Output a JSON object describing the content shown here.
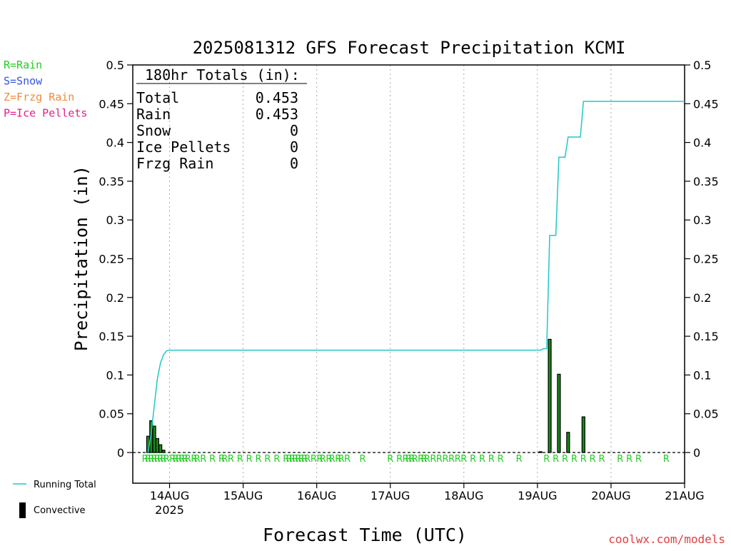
{
  "chart_data": {
    "type": "line",
    "title": "2025081312 GFS Forecast Precipitation KCMI",
    "xlabel": "Forecast Time (UTC)",
    "ylabel": "Precipitation (in)",
    "ylim": [
      0,
      0.5
    ],
    "y_ticks": [
      "0",
      "0.05",
      "0.1",
      "0.15",
      "0.2",
      "0.25",
      "0.3",
      "0.35",
      "0.4",
      "0.45",
      "0.5"
    ],
    "y_tick_values": [
      0,
      0.05,
      0.1,
      0.15,
      0.2,
      0.25,
      0.3,
      0.35,
      0.4,
      0.45,
      0.5
    ],
    "xlim_hours": [
      -12,
      168
    ],
    "x_ticks": [
      {
        "label": "14AUG",
        "hour": 0,
        "sub": "2025"
      },
      {
        "label": "15AUG",
        "hour": 24,
        "sub": ""
      },
      {
        "label": "16AUG",
        "hour": 48,
        "sub": ""
      },
      {
        "label": "17AUG",
        "hour": 72,
        "sub": ""
      },
      {
        "label": "18AUG",
        "hour": 96,
        "sub": ""
      },
      {
        "label": "19AUG",
        "hour": 120,
        "sub": ""
      },
      {
        "label": "20AUG",
        "hour": 144,
        "sub": ""
      },
      {
        "label": "21AUG",
        "hour": 168,
        "sub": ""
      }
    ],
    "type_legend": [
      {
        "text": "R=Rain",
        "color": "#22cc22"
      },
      {
        "text": "S=Snow",
        "color": "#3355dd"
      },
      {
        "text": "Z=Frzg Rain",
        "color": "#f08a3c"
      },
      {
        "text": "P=Ice Pellets",
        "color": "#e0208a"
      }
    ],
    "totals_box": {
      "heading": "180hr Totals (in):",
      "rows": [
        {
          "label": "Total",
          "value": "0.453"
        },
        {
          "label": "Rain",
          "value": "0.453"
        },
        {
          "label": "Snow",
          "value": "0"
        },
        {
          "label": "Ice Pellets",
          "value": "0"
        },
        {
          "label": "Frzg Rain",
          "value": "0"
        }
      ]
    },
    "series": [
      {
        "name": "Running Total",
        "color": "#22c7c7",
        "points": [
          [
            -7,
            0
          ],
          [
            -6,
            0.025
          ],
          [
            -5,
            0.06
          ],
          [
            -4,
            0.095
          ],
          [
            -3,
            0.115
          ],
          [
            -2,
            0.126
          ],
          [
            -1,
            0.131
          ],
          [
            0,
            0.132
          ],
          [
            48,
            0.132
          ],
          [
            120,
            0.132
          ],
          [
            121,
            0.132
          ],
          [
            122,
            0.134
          ],
          [
            123,
            0.134
          ],
          [
            124,
            0.28
          ],
          [
            126,
            0.28
          ],
          [
            127,
            0.381
          ],
          [
            129,
            0.381
          ],
          [
            130,
            0.407
          ],
          [
            134,
            0.407
          ],
          [
            135,
            0.453
          ],
          [
            168,
            0.453
          ]
        ]
      },
      {
        "name": "Convective",
        "color": "#000000",
        "bar_color": "#1a8a1a",
        "bars": [
          [
            -7,
            0.021
          ],
          [
            -6,
            0.041
          ],
          [
            -5,
            0.034
          ],
          [
            -4,
            0.018
          ],
          [
            -3,
            0.01
          ],
          [
            -2,
            0.003
          ],
          [
            121,
            0.001
          ],
          [
            124,
            0.146
          ],
          [
            127,
            0.101
          ],
          [
            130,
            0.026
          ],
          [
            135,
            0.046
          ]
        ]
      }
    ],
    "precip_type_marks": {
      "letter": "R",
      "color": "#22cc22",
      "hours": [
        -8,
        -7,
        -6,
        -5,
        -4,
        -3,
        -2,
        -1,
        1,
        2,
        3,
        4,
        5,
        6,
        8,
        9,
        11,
        14,
        17,
        18,
        20,
        23,
        26,
        29,
        32,
        35,
        38,
        39,
        40,
        41,
        42,
        43,
        44,
        45,
        47,
        49,
        50,
        52,
        53,
        55,
        56,
        58,
        63,
        72,
        75,
        77,
        78,
        79,
        80,
        82,
        83,
        84,
        86,
        88,
        90,
        92,
        94,
        96,
        99,
        102,
        105,
        108,
        114,
        123,
        126,
        129,
        132,
        135,
        138,
        141,
        147,
        150,
        153,
        162
      ]
    },
    "bottom_legend": [
      {
        "text": "Running Total",
        "kind": "line",
        "color": "#22c7c7"
      },
      {
        "text": "Convective",
        "kind": "bar",
        "color": "#000000"
      }
    ],
    "credit": "coolwx.com/models",
    "credit_color": "#e04040"
  }
}
